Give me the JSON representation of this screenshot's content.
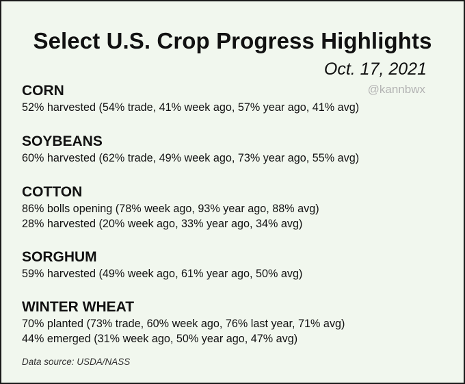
{
  "title": "Select U.S. Crop Progress Highlights",
  "date": "Oct. 17, 2021",
  "handle": "@kannbwx",
  "sections": [
    {
      "name": "CORN",
      "lines": [
        "52% harvested (54% trade, 41% week ago, 57% year ago, 41% avg)"
      ]
    },
    {
      "name": "SOYBEANS",
      "lines": [
        "60% harvested (62% trade, 49% week ago, 73% year ago, 55% avg)"
      ]
    },
    {
      "name": "COTTON",
      "lines": [
        "86% bolls opening (78% week ago, 93% year ago, 88% avg)",
        "28% harvested (20% week ago, 33% year ago, 34% avg)"
      ]
    },
    {
      "name": "SORGHUM",
      "lines": [
        "59% harvested (49% week ago, 61% year ago, 50% avg)"
      ]
    },
    {
      "name": "WINTER WHEAT",
      "lines": [
        "70% planted (73% trade, 60% week ago, 76% last year, 71% avg)",
        "44% emerged (31% week ago, 50% year ago, 47% avg)"
      ]
    }
  ],
  "source": "Data source: USDA/NASS"
}
